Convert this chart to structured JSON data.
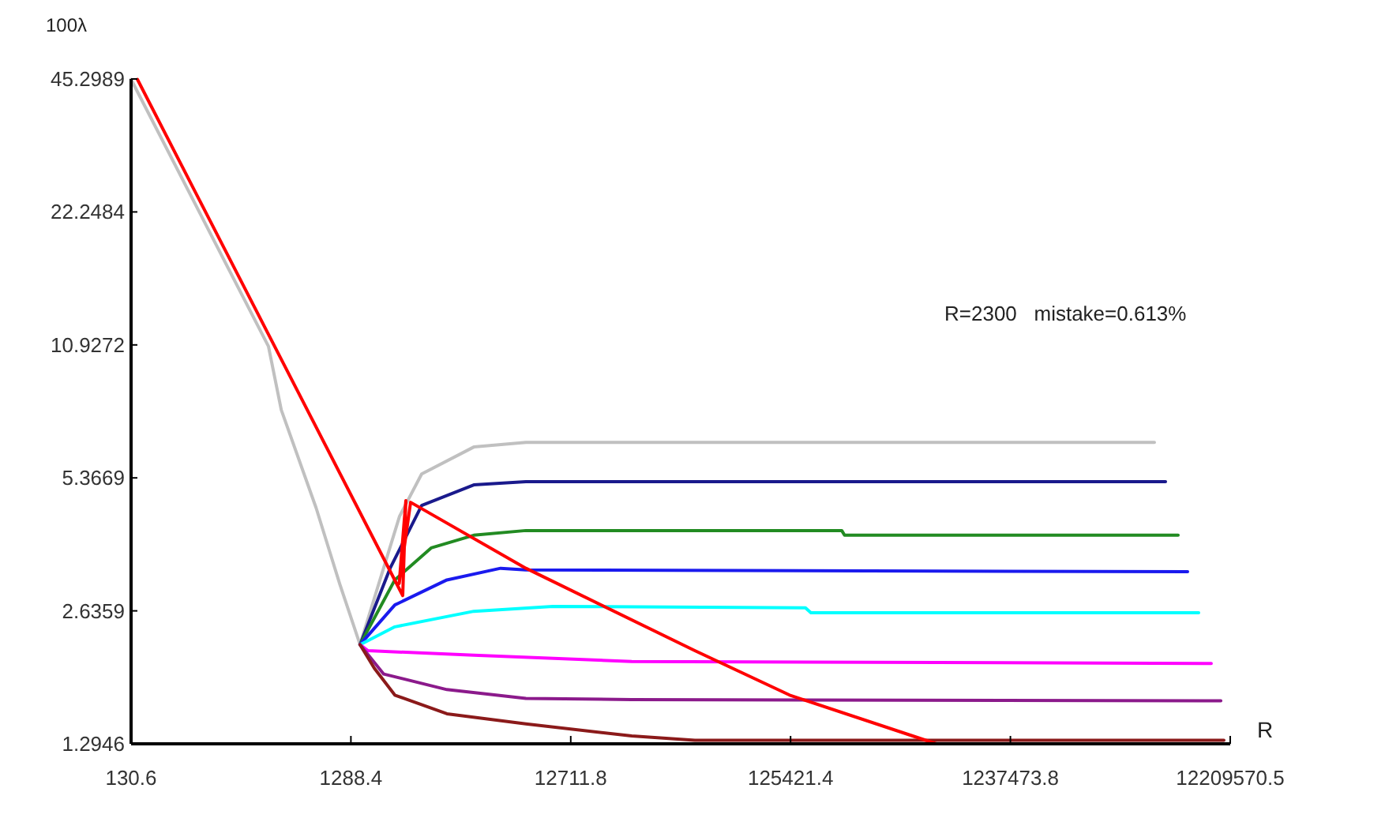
{
  "chart_data": {
    "type": "line",
    "xlabel": "R",
    "ylabel": "100λ",
    "log": "xy",
    "xlim": [
      130.6,
      12209570.5
    ],
    "xticks": [
      130.6,
      1288.4,
      12711.8,
      125421.4,
      1237473.8,
      12209570.5
    ],
    "ylim": [
      1.2946,
      45.2989
    ],
    "yticks": [
      1.2946,
      2.6359,
      5.3669,
      10.9272,
      22.2484,
      45.2989
    ],
    "annotations": [
      "R=2300   mistake=0.613%"
    ],
    "series": [
      {
        "color": "#c0c0c0",
        "x": [
          130.6,
          546,
          624,
          897,
          1148,
          1417,
          2138,
          2692,
          4632,
          7970,
          5544000
        ],
        "values": [
          45.2,
          10.84,
          7.72,
          4.57,
          3.04,
          2.2,
          4.37,
          5.48,
          6.33,
          6.49,
          6.49
        ]
      },
      {
        "color": "#1a1a8c",
        "x": [
          1417,
          1938,
          2692,
          4632,
          7970,
          6223000
        ],
        "values": [
          2.2,
          3.31,
          4.63,
          5.17,
          5.26,
          5.26
        ]
      },
      {
        "color": "#228b22",
        "x": [
          1417,
          2036,
          2971,
          4632,
          7970,
          213700,
          220000,
          7096000
        ],
        "values": [
          2.2,
          3.11,
          3.69,
          3.95,
          4.05,
          4.05,
          3.95,
          3.95
        ]
      },
      {
        "color": "#1a1aee",
        "x": [
          1417,
          2036,
          3502,
          6126,
          7970,
          7834000
        ],
        "values": [
          2.2,
          2.72,
          3.11,
          3.31,
          3.28,
          3.25
        ]
      },
      {
        "color": "#00ffff",
        "x": [
          1417,
          2036,
          4632,
          10540,
          146400,
          155000,
          8790000
        ],
        "values": [
          2.2,
          2.42,
          2.63,
          2.7,
          2.68,
          2.61,
          2.61
        ]
      },
      {
        "color": "#ff00ff",
        "x": [
          1417,
          1539,
          4632,
          23990,
          10020000
        ],
        "values": [
          2.2,
          2.13,
          2.08,
          2.01,
          1.99
        ]
      },
      {
        "color": "#8b1a8b",
        "x": [
          1417,
          1814,
          3502,
          7970,
          23990,
          11070000
        ],
        "values": [
          2.2,
          1.88,
          1.73,
          1.65,
          1.64,
          1.63
        ]
      },
      {
        "color": "#8b1a1a",
        "x": [
          1417,
          1644,
          2036,
          3502,
          7970,
          23990,
          46300,
          11430000
        ],
        "values": [
          2.2,
          1.94,
          1.68,
          1.52,
          1.44,
          1.35,
          1.32,
          1.32
        ]
      },
      {
        "color": "#ff0000",
        "x": [
          139.5,
          2210,
          2283,
          2130,
          2399,
          7970,
          46300,
          124200,
          573000
        ],
        "values": [
          45.2,
          2.86,
          4.75,
          3.05,
          4.71,
          3.31,
          2.13,
          1.68,
          1.2946
        ]
      }
    ]
  }
}
